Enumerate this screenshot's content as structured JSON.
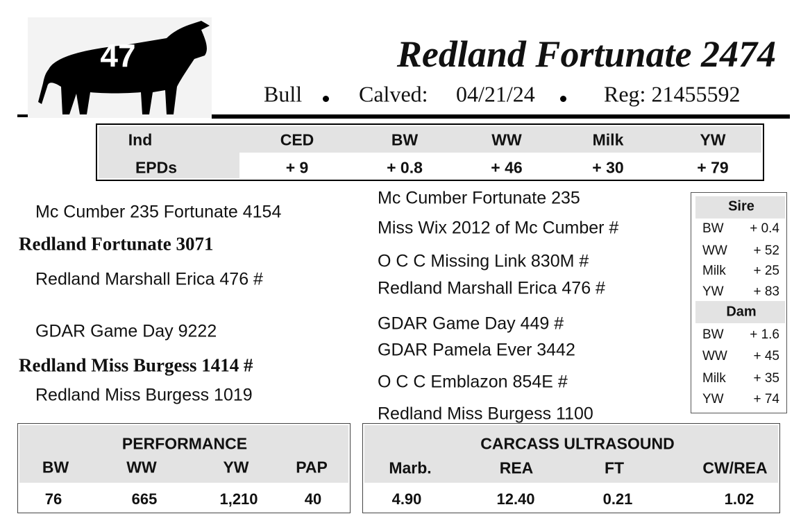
{
  "header": {
    "lot": "47",
    "name": "Redland Fortunate 2474",
    "sex": "Bull",
    "calved_label": "Calved:",
    "calved": "04/21/24",
    "reg": "Reg: 21455592"
  },
  "epd_table": {
    "header": [
      "Ind",
      "CED",
      "BW",
      "WW",
      "Milk",
      "YW"
    ],
    "row": [
      "EPDs",
      "+ 9",
      "+ 0.8",
      "+ 46",
      "+ 30",
      "+ 79"
    ]
  },
  "pedigree": {
    "left": [
      "Mc Cumber 235 Fortunate 4154",
      "Redland Fortunate 3071",
      "Redland Marshall Erica 476 #",
      "GDAR Game Day 9222",
      "Redland Miss Burgess 1414 #",
      "Redland Miss Burgess 1019"
    ],
    "right": [
      "Mc Cumber Fortunate 235",
      "Miss Wix 2012 of Mc Cumber #",
      "O C C Missing Link 830M #",
      "Redland Marshall Erica 476 #",
      "GDAR Game Day 449 #",
      "GDAR Pamela Ever 3442",
      "O C C Emblazon 854E #",
      "Redland Miss Burgess 1100"
    ]
  },
  "epd_box": {
    "sire": {
      "title": "Sire",
      "rows": [
        [
          "BW",
          "+ 0.4"
        ],
        [
          "WW",
          "+ 52"
        ],
        [
          "Milk",
          "+ 25"
        ],
        [
          "YW",
          "+ 83"
        ]
      ]
    },
    "dam": {
      "title": "Dam",
      "rows": [
        [
          "BW",
          "+ 1.6"
        ],
        [
          "WW",
          "+ 45"
        ],
        [
          "Milk",
          "+ 35"
        ],
        [
          "YW",
          "+ 74"
        ]
      ]
    }
  },
  "performance": {
    "title": "PERFORMANCE",
    "headers": [
      "BW",
      "WW",
      "YW",
      "PAP"
    ],
    "values": [
      "76",
      "665",
      "1,210",
      "40"
    ]
  },
  "carcass": {
    "title": "CARCASS ULTRASOUND",
    "headers": [
      "Marb.",
      "REA",
      "FT",
      "CW/REA"
    ],
    "values": [
      "4.90",
      "12.40",
      "0.21",
      "1.02"
    ]
  }
}
